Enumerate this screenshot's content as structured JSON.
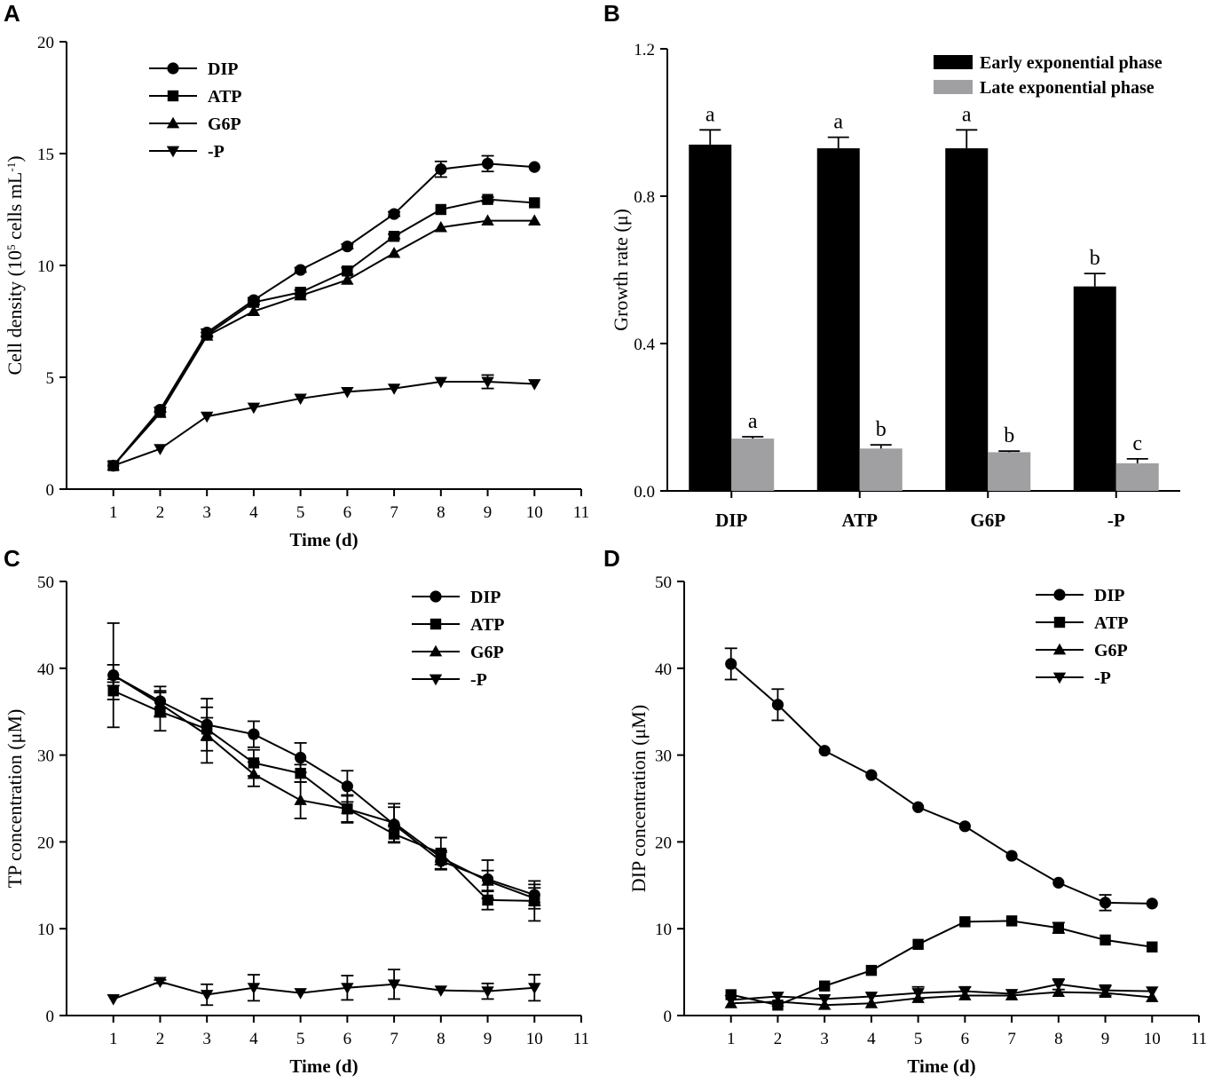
{
  "chart_data": [
    {
      "panel": "A",
      "type": "line",
      "xlabel": "Time (d)",
      "ylabel_main": "Cell density (10",
      "ylabel_sup1": "5",
      "ylabel_mid": " cells mL",
      "ylabel_sup2": "-1",
      "ylabel_end": ")",
      "xlim": [
        0,
        11
      ],
      "ylim": [
        0,
        20
      ],
      "xticks": [
        1,
        2,
        3,
        4,
        5,
        6,
        7,
        8,
        9,
        10,
        11
      ],
      "yticks": [
        0,
        5,
        10,
        15,
        20
      ],
      "x": [
        1,
        2,
        3,
        4,
        5,
        6,
        7,
        8,
        9,
        10
      ],
      "series": [
        {
          "name": "DIP",
          "marker": "circle",
          "values": [
            1.05,
            3.55,
            7.0,
            8.45,
            9.8,
            10.85,
            12.3,
            14.3,
            14.55,
            14.4
          ],
          "errors": [
            0,
            0.1,
            0.15,
            0.1,
            0.1,
            0.1,
            0.1,
            0.35,
            0.35,
            0
          ]
        },
        {
          "name": "ATP",
          "marker": "square",
          "values": [
            1.05,
            3.45,
            6.9,
            8.35,
            8.8,
            9.75,
            11.3,
            12.5,
            12.95,
            12.8
          ],
          "errors": [
            0,
            0,
            0.1,
            0.1,
            0.1,
            0.15,
            0.1,
            0,
            0.1,
            0
          ]
        },
        {
          "name": "G6P",
          "marker": "triangle-up",
          "values": [
            1.05,
            3.4,
            6.85,
            7.95,
            8.65,
            9.35,
            10.55,
            11.7,
            12.0,
            12.0
          ],
          "errors": [
            0,
            0,
            0,
            0,
            0,
            0,
            0,
            0,
            0,
            0
          ]
        },
        {
          "name": "-P",
          "marker": "triangle-down",
          "values": [
            1.05,
            1.8,
            3.25,
            3.65,
            4.05,
            4.35,
            4.5,
            4.8,
            4.8,
            4.7
          ],
          "errors": [
            0,
            0,
            0,
            0,
            0,
            0,
            0,
            0,
            0.3,
            0
          ]
        }
      ]
    },
    {
      "panel": "B",
      "type": "bar",
      "ylabel": "Growth rate (μ)",
      "ylim": [
        0,
        1.2
      ],
      "yticks": [
        "0.0",
        "0.4",
        "0.8",
        "1.2"
      ],
      "categories": [
        "DIP",
        "ATP",
        "G6P",
        "-P"
      ],
      "series": [
        {
          "name": "Early exponential phase",
          "color": "#000000",
          "values": [
            0.94,
            0.93,
            0.93,
            0.555
          ],
          "errors": [
            0.04,
            0.03,
            0.05,
            0.035
          ],
          "labels": [
            "a",
            "a",
            "a",
            "b"
          ]
        },
        {
          "name": "Late exponential phase",
          "color": "#a0a0a2",
          "values": [
            0.142,
            0.115,
            0.105,
            0.075
          ],
          "errors": [
            0.005,
            0.01,
            0.003,
            0.012
          ],
          "labels": [
            "a",
            "b",
            "b",
            "c"
          ]
        }
      ]
    },
    {
      "panel": "C",
      "type": "line",
      "xlabel": "Time (d)",
      "ylabel": "TP concentration (μM)",
      "xlim": [
        0,
        11
      ],
      "ylim": [
        0,
        50
      ],
      "xticks": [
        1,
        2,
        3,
        4,
        5,
        6,
        7,
        8,
        9,
        10,
        11
      ],
      "yticks": [
        0,
        10,
        20,
        30,
        40,
        50
      ],
      "x": [
        1,
        2,
        3,
        4,
        5,
        6,
        7,
        8,
        9,
        10
      ],
      "series": [
        {
          "name": "DIP",
          "marker": "circle",
          "values": [
            39.2,
            36.2,
            33.5,
            32.4,
            29.7,
            26.4,
            22.0,
            17.8,
            15.7,
            13.9
          ],
          "errors": [
            6.0,
            1.7,
            3.0,
            1.5,
            1.7,
            1.8,
            2.0,
            1.0,
            2.2,
            1.2
          ]
        },
        {
          "name": "ATP",
          "marker": "square",
          "values": [
            37.4,
            35.0,
            33.0,
            29.1,
            27.9,
            23.8,
            20.9,
            18.7,
            13.3,
            13.2
          ],
          "errors": [
            1.0,
            2.2,
            1.3,
            1.5,
            1.0,
            1.5,
            1.0,
            1.8,
            1.1,
            2.3
          ]
        },
        {
          "name": "G6P",
          "marker": "triangle-up",
          "values": [
            39.2,
            35.9,
            32.3,
            27.8,
            24.8,
            23.8,
            22.2,
            18.2,
            15.5,
            13.5
          ],
          "errors": [
            1.2,
            1.5,
            3.2,
            1.4,
            2.1,
            1.6,
            2.2,
            0.8,
            1.2,
            1.2
          ]
        },
        {
          "name": "-P",
          "marker": "triangle-down",
          "values": [
            1.9,
            3.9,
            2.4,
            3.2,
            2.6,
            3.2,
            3.6,
            2.9,
            2.8,
            3.2
          ],
          "errors": [
            0,
            0.2,
            1.2,
            1.5,
            0,
            1.4,
            1.7,
            0,
            0.9,
            1.5
          ]
        }
      ]
    },
    {
      "panel": "D",
      "type": "line",
      "xlabel": "Time (d)",
      "ylabel": "DIP concentration (μM)",
      "xlim": [
        0,
        11
      ],
      "ylim": [
        0,
        50
      ],
      "xticks": [
        1,
        2,
        3,
        4,
        5,
        6,
        7,
        8,
        9,
        10,
        11
      ],
      "yticks": [
        0,
        10,
        20,
        30,
        40,
        50
      ],
      "x": [
        1,
        2,
        3,
        4,
        5,
        6,
        7,
        8,
        9,
        10
      ],
      "series": [
        {
          "name": "DIP",
          "marker": "circle",
          "values": [
            40.5,
            35.8,
            30.5,
            27.7,
            24.0,
            21.8,
            18.4,
            15.3,
            13.0,
            12.9
          ],
          "errors": [
            1.8,
            1.8,
            0,
            0,
            0,
            0,
            0,
            0,
            0.9,
            0
          ]
        },
        {
          "name": "ATP",
          "marker": "square",
          "values": [
            2.4,
            1.2,
            3.4,
            5.2,
            8.2,
            10.8,
            10.9,
            10.1,
            8.7,
            7.9
          ],
          "errors": [
            0,
            0,
            0,
            0,
            0,
            0,
            0,
            0.6,
            0,
            0
          ]
        },
        {
          "name": "G6P",
          "marker": "triangle-up",
          "values": [
            1.4,
            1.6,
            1.2,
            1.4,
            2.0,
            2.3,
            2.3,
            2.7,
            2.6,
            2.1
          ],
          "errors": [
            0,
            0,
            0,
            0,
            0,
            0,
            0,
            0,
            0,
            0
          ]
        },
        {
          "name": "-P",
          "marker": "triangle-down",
          "values": [
            1.8,
            2.2,
            1.9,
            2.2,
            2.6,
            2.8,
            2.5,
            3.6,
            2.9,
            2.8
          ],
          "errors": [
            0,
            0,
            0,
            0,
            0.7,
            0.5,
            0,
            0.6,
            0.6,
            0
          ]
        }
      ]
    }
  ],
  "panel_letters": [
    "A",
    "B",
    "C",
    "D"
  ],
  "colors": {
    "line": "#000000",
    "early": "#000000",
    "late": "#a0a0a2"
  }
}
